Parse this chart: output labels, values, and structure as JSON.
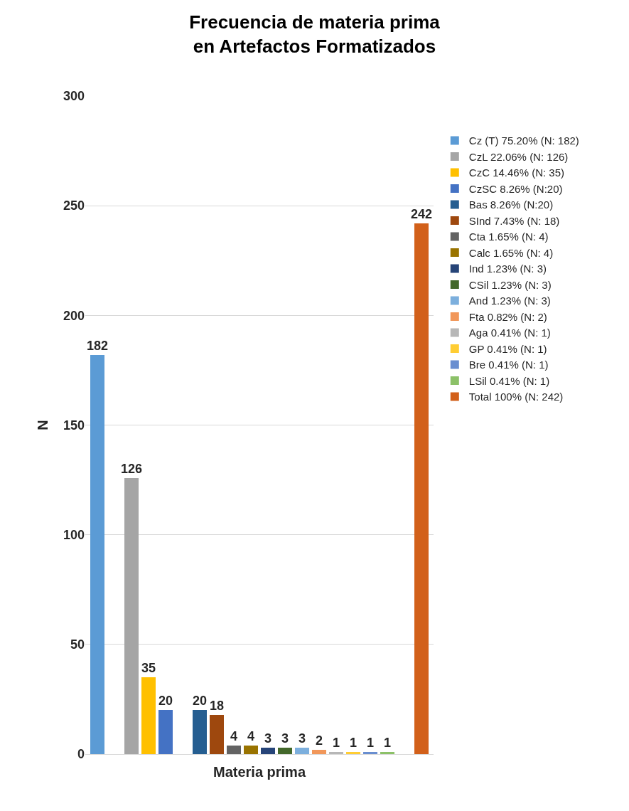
{
  "chart_data": {
    "type": "bar",
    "title": "Frecuencia de materia prima\nen Artefactos Formatizados",
    "xlabel": "Materia prima",
    "ylabel": "N",
    "categories": [
      null,
      null,
      null,
      null,
      null,
      null,
      null,
      null,
      null,
      null,
      null,
      null,
      null,
      null,
      null,
      null,
      null,
      null,
      null,
      null
    ],
    "series": [
      {
        "name": "Cz (T) 75.20% (N: 182)",
        "color": "#5b9bd5",
        "values": [
          182,
          null,
          null,
          null,
          null,
          null,
          null,
          null,
          null,
          null,
          null,
          null,
          null,
          null,
          null,
          null,
          null,
          null,
          null,
          null
        ]
      },
      {
        "name": "CzL 22.06% (N: 126)",
        "color": "#a5a5a5",
        "values": [
          null,
          null,
          126,
          null,
          null,
          null,
          null,
          null,
          null,
          null,
          null,
          null,
          null,
          null,
          null,
          null,
          null,
          null,
          null,
          null
        ]
      },
      {
        "name": "CzC 14.46% (N: 35)",
        "color": "#ffc000",
        "values": [
          null,
          null,
          null,
          35,
          null,
          null,
          null,
          null,
          null,
          null,
          null,
          null,
          null,
          null,
          null,
          null,
          null,
          null,
          null,
          null
        ]
      },
      {
        "name": "CzSC 8.26% (N:20)",
        "color": "#4472c4",
        "values": [
          null,
          null,
          null,
          null,
          20,
          null,
          null,
          null,
          null,
          null,
          null,
          null,
          null,
          null,
          null,
          null,
          null,
          null,
          null,
          null
        ]
      },
      {
        "name": "Bas 8.26% (N:20)",
        "color": "#255e91",
        "values": [
          null,
          null,
          null,
          null,
          null,
          null,
          20,
          null,
          null,
          null,
          null,
          null,
          null,
          null,
          null,
          null,
          null,
          null,
          null,
          null
        ]
      },
      {
        "name": "SInd 7.43% (N: 18)",
        "color": "#9e480e",
        "values": [
          null,
          null,
          null,
          null,
          null,
          null,
          null,
          18,
          null,
          null,
          null,
          null,
          null,
          null,
          null,
          null,
          null,
          null,
          null,
          null
        ]
      },
      {
        "name": "Cta 1.65% (N: 4)",
        "color": "#636363",
        "values": [
          null,
          null,
          null,
          null,
          null,
          null,
          null,
          null,
          4,
          null,
          null,
          null,
          null,
          null,
          null,
          null,
          null,
          null,
          null,
          null
        ]
      },
      {
        "name": "Calc 1.65% (N: 4)",
        "color": "#997300",
        "values": [
          null,
          null,
          null,
          null,
          null,
          null,
          null,
          null,
          null,
          4,
          null,
          null,
          null,
          null,
          null,
          null,
          null,
          null,
          null,
          null
        ]
      },
      {
        "name": "Ind 1.23% (N: 3)",
        "color": "#264478",
        "values": [
          null,
          null,
          null,
          null,
          null,
          null,
          null,
          null,
          null,
          null,
          3,
          null,
          null,
          null,
          null,
          null,
          null,
          null,
          null,
          null
        ]
      },
      {
        "name": "CSil 1.23% (N: 3)",
        "color": "#43682b",
        "values": [
          null,
          null,
          null,
          null,
          null,
          null,
          null,
          null,
          null,
          null,
          null,
          3,
          null,
          null,
          null,
          null,
          null,
          null,
          null,
          null
        ]
      },
      {
        "name": "And 1.23% (N: 3)",
        "color": "#7cafdd",
        "values": [
          null,
          null,
          null,
          null,
          null,
          null,
          null,
          null,
          null,
          null,
          null,
          null,
          3,
          null,
          null,
          null,
          null,
          null,
          null,
          null
        ]
      },
      {
        "name": "Fta 0.82% (N: 2)",
        "color": "#f1975a",
        "values": [
          null,
          null,
          null,
          null,
          null,
          null,
          null,
          null,
          null,
          null,
          null,
          null,
          null,
          2,
          null,
          null,
          null,
          null,
          null,
          null
        ]
      },
      {
        "name": "Aga 0.41% (N: 1)",
        "color": "#b7b7b7",
        "values": [
          null,
          null,
          null,
          null,
          null,
          null,
          null,
          null,
          null,
          null,
          null,
          null,
          null,
          null,
          1,
          null,
          null,
          null,
          null,
          null
        ]
      },
      {
        "name": "GP 0.41% (N: 1)",
        "color": "#ffcd33",
        "values": [
          null,
          null,
          null,
          null,
          null,
          null,
          null,
          null,
          null,
          null,
          null,
          null,
          null,
          null,
          null,
          1,
          null,
          null,
          null,
          null
        ]
      },
      {
        "name": "Bre 0.41% (N: 1)",
        "color": "#698ed0",
        "values": [
          null,
          null,
          null,
          null,
          null,
          null,
          null,
          null,
          null,
          null,
          null,
          null,
          null,
          null,
          null,
          null,
          1,
          null,
          null,
          null
        ]
      },
      {
        "name": "LSil 0.41% (N: 1)",
        "color": "#8cc168",
        "values": [
          null,
          null,
          null,
          null,
          null,
          null,
          null,
          null,
          null,
          null,
          null,
          null,
          null,
          null,
          null,
          null,
          null,
          1,
          null,
          null
        ]
      },
      {
        "name": "Total 100% (N: 242)",
        "color": "#d2601a",
        "values": [
          null,
          null,
          null,
          null,
          null,
          null,
          null,
          null,
          null,
          null,
          null,
          null,
          null,
          null,
          null,
          null,
          null,
          null,
          null,
          242
        ]
      }
    ],
    "ylim": [
      0,
      300
    ],
    "yticks": [
      0,
      50,
      100,
      150,
      200,
      250,
      300
    ],
    "grid": "y",
    "legend": "right",
    "data_labels": true
  }
}
